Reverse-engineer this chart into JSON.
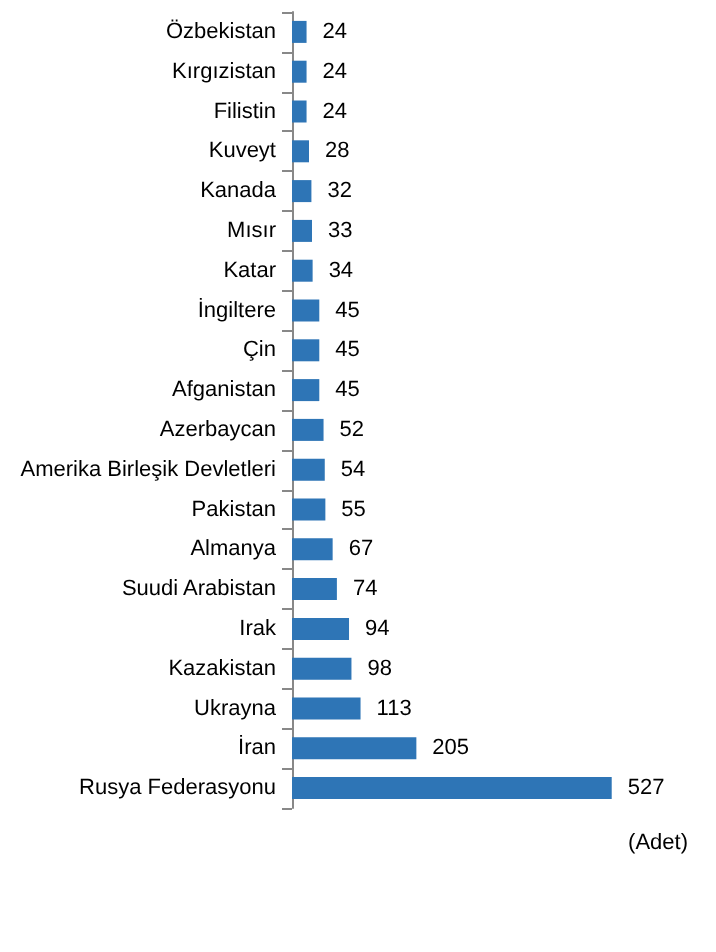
{
  "chart_data": {
    "type": "bar",
    "orientation": "horizontal",
    "categories": [
      "Özbekistan",
      "Kırgızistan",
      "Filistin",
      "Kuveyt",
      "Kanada",
      "Mısır",
      "Katar",
      "İngiltere",
      "Çin",
      "Afganistan",
      "Azerbaycan",
      "Amerika Birleşik Devletleri",
      "Pakistan",
      "Almanya",
      "Suudi Arabistan",
      "Irak",
      "Kazakistan",
      "Ukrayna",
      "İran",
      "Rusya Federasyonu"
    ],
    "values": [
      24,
      24,
      24,
      28,
      32,
      33,
      34,
      45,
      45,
      45,
      52,
      54,
      55,
      67,
      74,
      94,
      98,
      113,
      205,
      527
    ],
    "color": "#2e75b6",
    "data_labels": true,
    "tick_labels": "y",
    "annotations": [
      "(Adet)"
    ]
  }
}
